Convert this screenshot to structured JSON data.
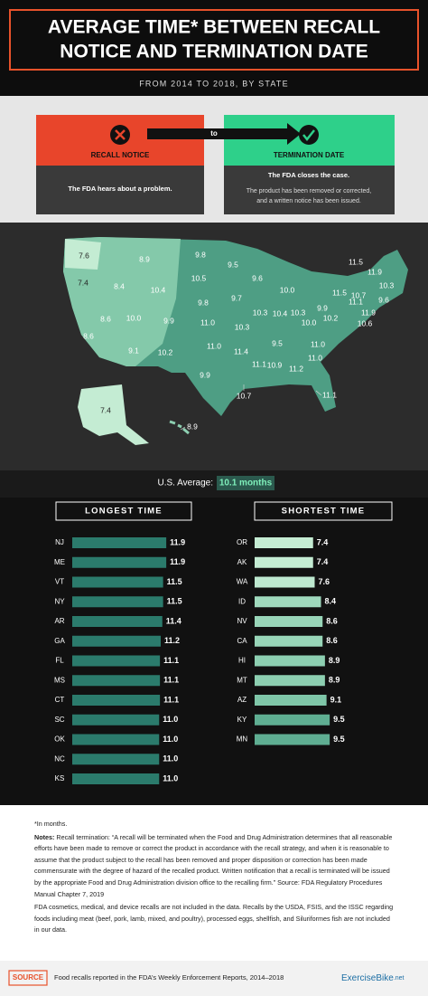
{
  "header": {
    "title_lines": [
      "AVERAGE TIME* BETWEEN RECALL",
      "NOTICE AND TERMINATION DATE"
    ],
    "subtitle": "FROM 2014 TO 2018, BY STATE"
  },
  "process": {
    "start": {
      "label": "RECALL NOTICE",
      "text": "The FDA hears about a problem."
    },
    "connector": "to",
    "end": {
      "label": "TERMINATION DATE",
      "lines": [
        "The FDA closes the case.",
        "The product has been removed or corrected,",
        "and a written notice has been issued."
      ]
    }
  },
  "map": {
    "labels": [
      "7.6",
      "7.4",
      "8.4",
      "8.9",
      "10.4",
      "9.8",
      "10.5",
      "9.8",
      "9.5",
      "9.6",
      "10.0",
      "8.6",
      "8.6",
      "10.0",
      "9.9",
      "11.0",
      "9.7",
      "10.3",
      "10.4",
      "10.3",
      "10.3",
      "11.5",
      "11.9",
      "11.5",
      "10.7",
      "10.3",
      "11.1",
      "9.6",
      "11.9",
      "10.6",
      "10.2",
      "9.9",
      "10.0",
      "9.5",
      "11.0",
      "11.0",
      "9.1",
      "10.2",
      "11.0",
      "11.4",
      "9.9",
      "10.7",
      "11.1",
      "10.9",
      "11.2",
      "11.1",
      "7.4",
      "8.9"
    ],
    "average": {
      "label": "U.S. Average:",
      "value": "10.1 months"
    }
  },
  "chart_data": [
    {
      "type": "bar",
      "orientation": "horizontal",
      "title": "LONGEST TIME",
      "categories": [
        "NJ",
        "ME",
        "VT",
        "NY",
        "AR",
        "GA",
        "FL",
        "MS",
        "CT",
        "SC",
        "OK",
        "NC",
        "KS"
      ],
      "values": [
        11.9,
        11.9,
        11.5,
        11.5,
        11.4,
        11.2,
        11.1,
        11.1,
        11.1,
        11.0,
        11.0,
        11.0,
        11.0
      ],
      "value_labels": [
        "11.9",
        "11.9",
        "11.5",
        "11.5",
        "11.4",
        "11.2",
        "11.1",
        "11.1",
        "11.1",
        "11.0",
        "11.0",
        "11.0",
        "11.0"
      ],
      "color": "#2b7b6c",
      "xlim": [
        0,
        12
      ]
    },
    {
      "type": "bar",
      "orientation": "horizontal",
      "title": "SHORTEST TIME",
      "categories": [
        "OR",
        "AK",
        "WA",
        "ID",
        "NV",
        "CA",
        "HI",
        "MT",
        "AZ",
        "KY",
        "MN"
      ],
      "values": [
        7.4,
        7.4,
        7.6,
        8.4,
        8.6,
        8.6,
        8.9,
        8.9,
        9.1,
        9.5,
        9.5
      ],
      "colors": [
        "#c4ecd3",
        "#c4ecd3",
        "#bde8cf",
        "#9fd9bd",
        "#98d5b8",
        "#98d5b8",
        "#8dcfb1",
        "#8dcfb1",
        "#7fc6a8",
        "#5fae92",
        "#5fae92"
      ],
      "xlim": [
        0,
        12
      ]
    }
  ],
  "notes": {
    "footnote": "*In months.",
    "notes_label": "Notes:",
    "notes_text": "Recall termination: “A recall will be terminated when the Food and Drug Administration determines that all reasonable efforts have been made to remove or correct the product in accordance with the recall strategy, and when it is reasonable to assume that the product subject to the recall has been removed and proper disposition or correction has been made commensurate with the degree of hazard of the recalled product. Written notification that a recall is terminated will be issued by the appropriate Food and Drug Administration division office to the recalling firm.” Source: FDA Regulatory Procedures Manual Chapter 7, 2019",
    "exclusions": "FDA cosmetics, medical, and device recalls are not included in the data. Recalls by the USDA, FSIS, and the ISSC regarding foods including meat (beef, pork, lamb, mixed, and poultry), processed eggs, shellfish, and Siluriformes fish are not included in our data."
  },
  "footer": {
    "badge": "SOURCE",
    "text": "Food recalls reported in the FDA’s Weekly Enforcement Reports, 2014–2018",
    "brand": "ExerciseBike",
    "brand_suffix": ".net"
  }
}
